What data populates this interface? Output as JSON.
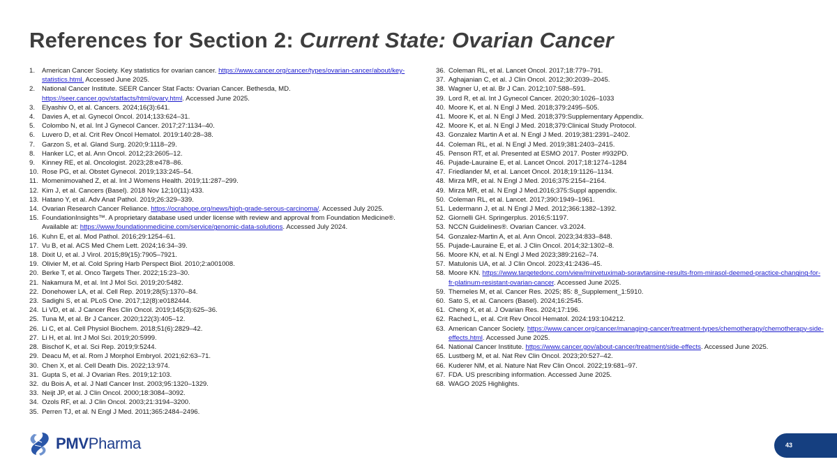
{
  "title": {
    "main": "References for Section 2: ",
    "italic": "Current State: Ovarian Cancer"
  },
  "references_left": [
    {
      "num": "1.",
      "pre": "American Cancer Society. Key statistics for ovarian cancer. ",
      "url": "https://www.cancer.org/cancer/types/ovarian-cancer/about/key-statistics.html.",
      "post": " Accessed June 2025."
    },
    {
      "num": "2.",
      "pre": "National Cancer Institute. SEER Cancer Stat Facts: Ovarian Cancer. Bethesda, MD. ",
      "url": "https://seer.cancer.gov/statfacts/html/ovary.html",
      "post": ". Accessed June 2025."
    },
    {
      "num": "3.",
      "pre": "Elyashiv O, et al. Cancers. 2024;16(3):641."
    },
    {
      "num": "4.",
      "pre": "Davies A, et al. Gynecol Oncol. 2014;133:624–31."
    },
    {
      "num": "5.",
      "pre": "Colombo N, et al. Int J Gynecol Cancer. 2017;27:1134–40."
    },
    {
      "num": "6.",
      "pre": "Luvero D, et al. Crit Rev Oncol Hematol. 2019:140:28–38."
    },
    {
      "num": "7.",
      "pre": "Garzon S, et al. Gland Surg. 2020;9:1118–29."
    },
    {
      "num": "8.",
      "pre": "Hanker LC, et al. Ann Oncol. 2012;23:2605–12."
    },
    {
      "num": "9.",
      "pre": "Kinney RE, et al. Oncologist. 2023;28:e478–86."
    },
    {
      "num": "10.",
      "pre": "Rose PG, et al. Obstet Gynecol. 2019;133:245–54."
    },
    {
      "num": "11.",
      "pre": "Momenimovahed Z, et al. Int J Womens Health. 2019;11:287–299."
    },
    {
      "num": "12.",
      "pre": "Kim J, et al. Cancers (Basel). 2018 Nov 12;10(11):433."
    },
    {
      "num": "13.",
      "pre": "Hatano Y, et al. Adv Anat Pathol. 2019;26:329–339."
    },
    {
      "num": "14.",
      "pre": "Ovarian Research Cancer Reliance. ",
      "url": "https://ocrahope.org/news/high-grade-serous-carcinoma/",
      "post": ". Accessed July 2025."
    },
    {
      "num": "15.",
      "pre": "FoundationInsights™. A proprietary database used under license with review and approval from Foundation Medicine®. Available at: ",
      "url": "https://www.foundationmedicine.com/service/genomic-data-solutions",
      "post": ". Accessed July 2024."
    },
    {
      "num": "16.",
      "pre": "Kuhn E, et al. Mod Pathol. 2016;29:1254–61."
    },
    {
      "num": "17.",
      "pre": "Vu B, et al. ACS Med Chem Lett. 2024;16:34–39."
    },
    {
      "num": "18.",
      "pre": "Dixit U, et al. J Virol. 2015;89(15):7905–7921."
    },
    {
      "num": "19.",
      "pre": "Olivier M, et al. Cold Spring Harb Perspect Biol. 2010;2:a001008."
    },
    {
      "num": "20.",
      "pre": "Berke T, et al. Onco Targets Ther. 2022;15:23–30."
    },
    {
      "num": "21.",
      "pre": "Nakamura M, et al. Int J Mol Sci. 2019;20:5482."
    },
    {
      "num": "22.",
      "pre": "Donehower LA, et al. Cell Rep. 2019;28(5):1370–84."
    },
    {
      "num": "23.",
      "pre": "Sadighi S, et al. PLoS One. 2017;12(8):e0182444."
    },
    {
      "num": "24.",
      "pre": "Li VD, et al. J Cancer Res Clin Oncol. 2019;145(3):625–36."
    },
    {
      "num": "25.",
      "pre": "Tuna M, et al. Br J Cancer. 2020;122(3):405–12."
    },
    {
      "num": "26.",
      "pre": "Li C, et al. Cell Physiol Biochem. 2018;51(6):2829–42."
    },
    {
      "num": "27.",
      "pre": "Li H, et al. Int J Mol Sci. 2019;20:5999."
    },
    {
      "num": "28.",
      "pre": "Bischof K, et al. Sci Rep. 2019;9:5244."
    },
    {
      "num": "29.",
      "pre": "Deacu M, et al. Rom J Morphol Embryol. 2021;62:63–71."
    },
    {
      "num": "30.",
      "pre": "Chen X, et al. Cell Death Dis. 2022;13:974."
    },
    {
      "num": "31.",
      "pre": "Gupta S, et al. J Ovarian Res. 2019;12:103."
    },
    {
      "num": "32.",
      "pre": "du Bois A, et al. J Natl Cancer Inst. 2003;95:1320–1329."
    },
    {
      "num": "33.",
      "pre": "Neijt JP, et al. J Clin Oncol. 2000;18:3084–3092."
    },
    {
      "num": "34.",
      "pre": "Ozols RF, et al. J Clin Oncol. 2003;21:3194–3200."
    },
    {
      "num": "35.",
      "pre": "Perren TJ, et al. N Engl J Med. 2011;365:2484–2496."
    }
  ],
  "references_right": [
    {
      "num": "36.",
      "pre": "Coleman RL, et al. Lancet Oncol. 2017;18:779–791."
    },
    {
      "num": "37.",
      "pre": "Aghajanian C, et al. J Clin Oncol. 2012;30:2039–2045."
    },
    {
      "num": "38.",
      "pre": "Wagner U, et al. Br J Can. 2012;107:588–591."
    },
    {
      "num": "39.",
      "pre": "Lord R, et al. Int J Gynecol Cancer. 2020;30:1026–1033"
    },
    {
      "num": "40.",
      "pre": "Moore K, et al. N Engl J Med. 2018;379:2495–505."
    },
    {
      "num": "41.",
      "pre": "Moore K, et al. N Engl J Med. 2018;379:Supplementary Appendix."
    },
    {
      "num": "42.",
      "pre": "Moore K, et al. N Engl J Med. 2018;379:Clinical Study Protocol."
    },
    {
      "num": "43.",
      "pre": "Gonzalez Martin A et al. N Engl J Med. 2019;381:2391–2402."
    },
    {
      "num": "44.",
      "pre": "Coleman RL, et al. N Engl J Med. 2019;381:2403–2415."
    },
    {
      "num": "45.",
      "pre": "Penson RT, et al. Presented at ESMO 2017. Poster #932PD."
    },
    {
      "num": "46.",
      "pre": "Pujade-Lauraine E, et al. Lancet Oncol. 2017;18:1274–1284"
    },
    {
      "num": "47.",
      "pre": "Friedlander M, et al. Lancet Oncol. 2018;19:1126–1134."
    },
    {
      "num": "48.",
      "pre": "Mirza MR, et al. N Engl J Med. 2016;375:2154–2164."
    },
    {
      "num": "49.",
      "pre": "Mirza MR, et al. N Engl J Med.2016;375:Suppl appendix."
    },
    {
      "num": "50.",
      "pre": "Coleman RL, et al. Lancet. 2017;390:1949–1961."
    },
    {
      "num": "51.",
      "pre": "Ledermann J, et al. N Engl J Med. 2012;366:1382–1392."
    },
    {
      "num": "52.",
      "pre": "Giornelli GH. Springerplus. 2016;5:1197."
    },
    {
      "num": "53.",
      "pre": "NCCN Guidelines®. Ovarian Cancer. v3.2024."
    },
    {
      "num": "54.",
      "pre": "Gonzalez-Martin A, et al. Ann Oncol. 2023;34:833–848."
    },
    {
      "num": "55.",
      "pre": "Pujade-Lauraine E, et al. J Clin Oncol. 2014;32:1302–8."
    },
    {
      "num": "56.",
      "pre": "Moore KN, et al. N Engl J Med 2023;389:2162–74."
    },
    {
      "num": "57.",
      "pre": "Matulonis UA, et al. J Clin Oncol. 2023;41:2436–45."
    },
    {
      "num": "58.",
      "pre": "Moore KN. ",
      "url": "https://www.targetedonc.com/view/mirvetuximab-soravtansine-results-from-mirasol-deemed-practice-changing-for-fr-platinum-resistant-ovarian-cancer",
      "post": ". Accessed June 2025."
    },
    {
      "num": "59.",
      "pre": "Themeles M, et al. Cancer Res. 2025; 85: 8_Supplement_1:5910."
    },
    {
      "num": "60.",
      "pre": "Sato S, et al. Cancers (Basel). 2024;16:2545."
    },
    {
      "num": "61.",
      "pre": "Cheng X, et al. J Ovarian Res. 2024;17:196."
    },
    {
      "num": "62.",
      "pre": "Rached L, et al. Crit Rev Oncol Hematol. 2024:193:104212."
    },
    {
      "num": "63.",
      "pre": "American Cancer Society. ",
      "url": "https://www.cancer.org/cancer/managing-cancer/treatment-types/chemotherapy/chemotherapy-side-effects.html",
      "post": ". Accessed June 2025."
    },
    {
      "num": "64.",
      "pre": "National Cancer Institute. ",
      "url": "https://www.cancer.gov/about-cancer/treatment/side-effects",
      "post": ". Accessed June 2025."
    },
    {
      "num": "65.",
      "pre": "Lustberg M, et al. Nat Rev Clin Oncol. 2023;20:527–42."
    },
    {
      "num": "66.",
      "pre": "Kuderer NM, et al. Nature Nat Rev Clin Oncol. 2022;19:681–97."
    },
    {
      "num": "67.",
      "pre": "FDA. US prescribing information. Accessed June 2025."
    },
    {
      "num": "68.",
      "pre": "WAGO 2025 Highlights."
    }
  ],
  "footer": {
    "logo_text_bold": "PMV",
    "logo_text": "Pharma",
    "page_number": "43",
    "brand_color": "#1f3e8c",
    "page_tab_color": "#153f80",
    "link_color": "#1a1acc"
  }
}
